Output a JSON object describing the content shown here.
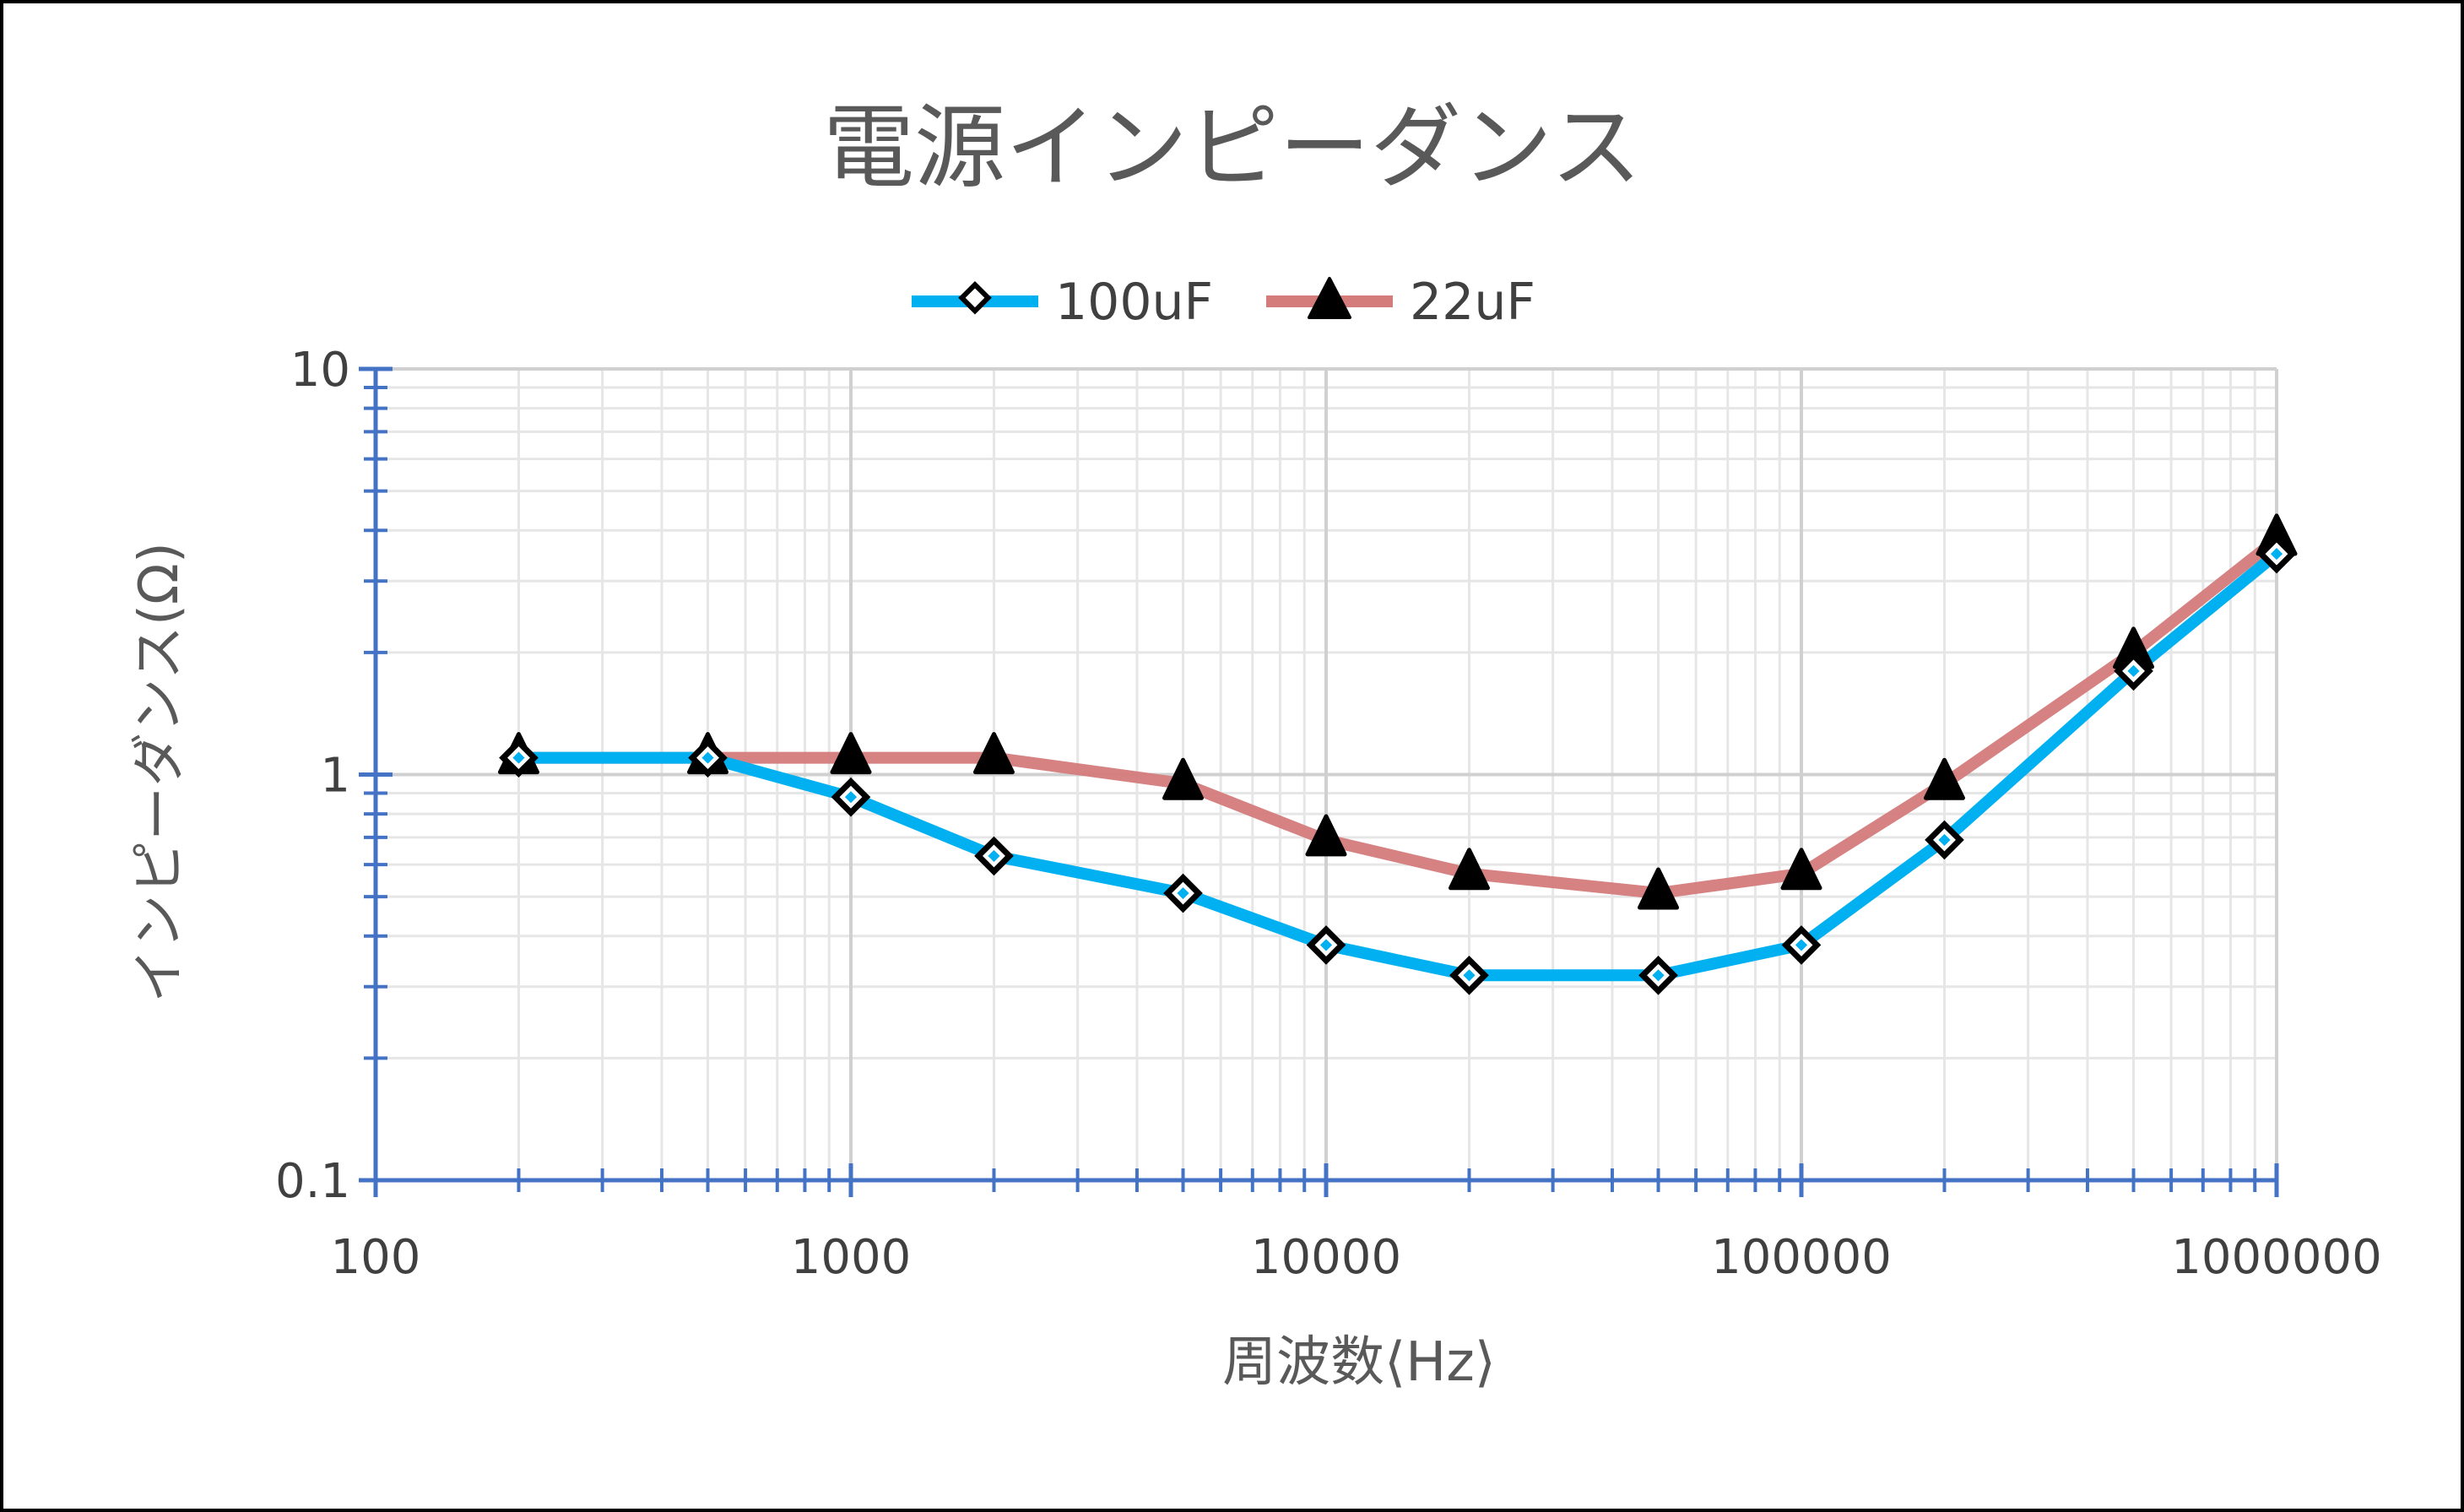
{
  "chart_data": {
    "type": "line",
    "title": "電源インピーダンス",
    "xlabel": "周波数⟨Hz⟩",
    "ylabel": "インピーダンス(Ω)",
    "x_scale": "log",
    "y_scale": "log",
    "xlim": [
      100,
      1000000
    ],
    "ylim": [
      0.1,
      10
    ],
    "x_tick_labels": [
      "100",
      "1000",
      "10000",
      "100000",
      "1000000"
    ],
    "y_tick_labels": [
      "0.1",
      "1",
      "10"
    ],
    "grid": true,
    "legend_position": "top",
    "x": [
      200,
      500,
      1000,
      2000,
      5000,
      10000,
      20000,
      50000,
      100000,
      200000,
      500000,
      1000000
    ],
    "series": [
      {
        "name": "100uF",
        "color": "#00B0F0",
        "marker": "diamond",
        "values": [
          1.1,
          1.1,
          0.88,
          0.63,
          0.51,
          0.38,
          0.32,
          0.32,
          0.38,
          0.69,
          1.8,
          3.5
        ]
      },
      {
        "name": "22uF",
        "color": "#D47B7B",
        "marker": "triangle",
        "values": [
          1.1,
          1.1,
          1.1,
          1.1,
          0.95,
          0.69,
          0.57,
          0.51,
          0.57,
          0.95,
          2.0,
          3.8
        ]
      }
    ]
  }
}
